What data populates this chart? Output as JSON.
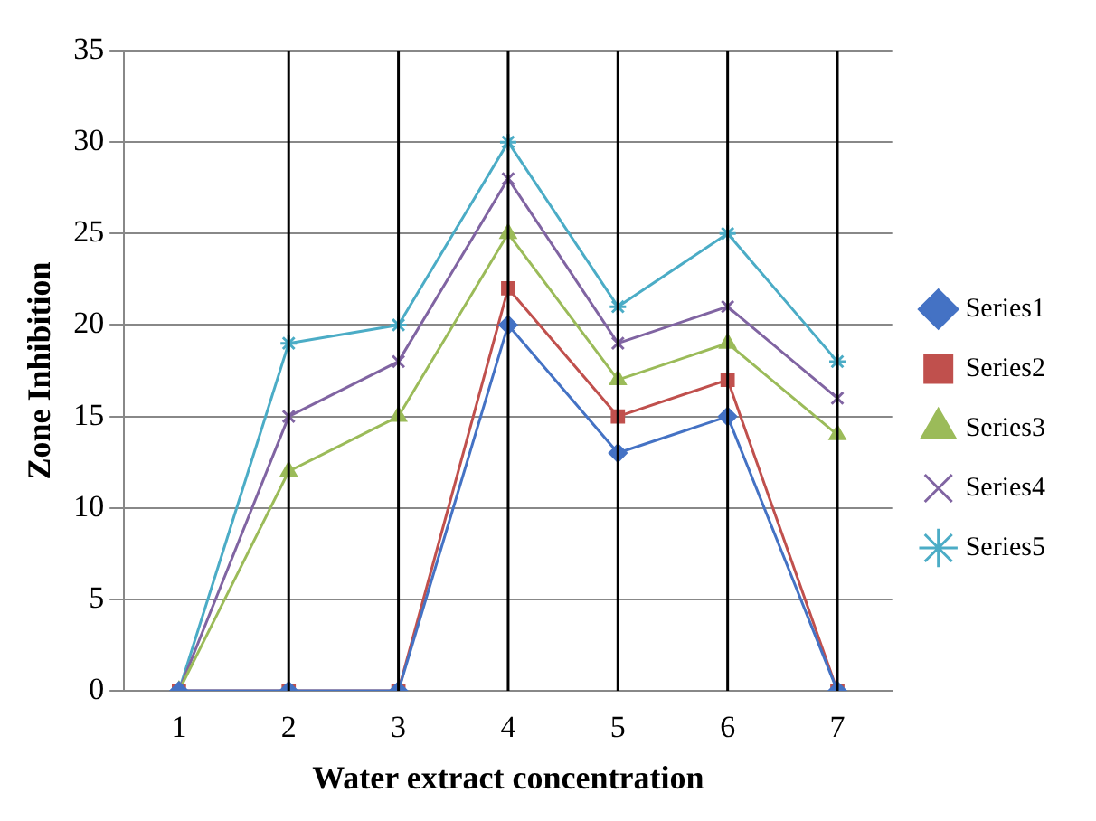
{
  "chart_data": {
    "type": "line",
    "xlabel": "Water extract concentration",
    "ylabel": "Zone Inhibition",
    "categories": [
      "1",
      "2",
      "3",
      "4",
      "5",
      "6",
      "7"
    ],
    "ylim": [
      0,
      35
    ],
    "yticks": [
      0,
      5,
      10,
      15,
      20,
      25,
      30,
      35
    ],
    "grid": "y",
    "legend": "right",
    "ref_lines": [
      {
        "axis": "x",
        "value": "2",
        "color": "#000000"
      },
      {
        "axis": "x",
        "value": "3",
        "color": "#000000"
      },
      {
        "axis": "x",
        "value": "4",
        "color": "#000000"
      },
      {
        "axis": "x",
        "value": "5",
        "color": "#000000"
      },
      {
        "axis": "x",
        "value": "6",
        "color": "#000000"
      },
      {
        "axis": "x",
        "value": "7",
        "color": "#000000"
      }
    ],
    "series": [
      {
        "name": "Series1",
        "color": "#4472c4",
        "marker": "diamond",
        "values": [
          0,
          0,
          0,
          20,
          13,
          15,
          0
        ]
      },
      {
        "name": "Series2",
        "color": "#c0504d",
        "marker": "square",
        "values": [
          0,
          0,
          0,
          22,
          15,
          17,
          0
        ]
      },
      {
        "name": "Series3",
        "color": "#9bbb59",
        "marker": "triangle",
        "values": [
          0,
          12,
          15,
          25,
          17,
          19,
          14
        ]
      },
      {
        "name": "Series4",
        "color": "#8064a2",
        "marker": "cross",
        "values": [
          0,
          15,
          18,
          28,
          19,
          21,
          16
        ]
      },
      {
        "name": "Series5",
        "color": "#4bacc6",
        "marker": "cross",
        "values": [
          0,
          19,
          20,
          30,
          21,
          25,
          18
        ]
      }
    ]
  }
}
